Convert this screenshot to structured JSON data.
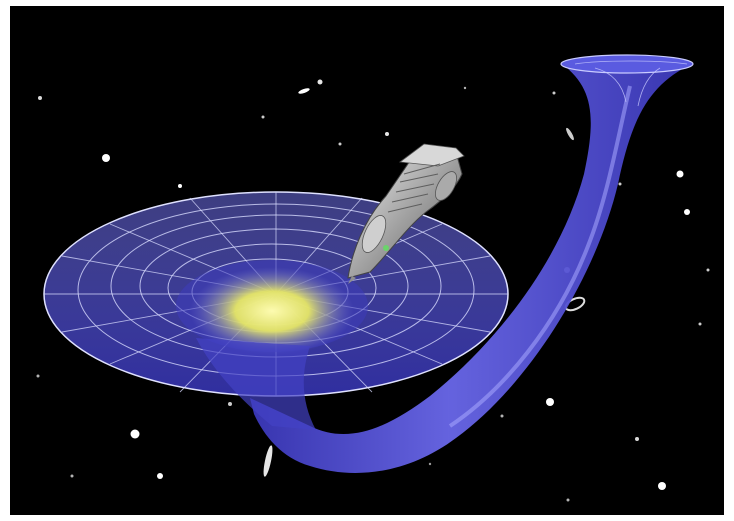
{
  "image": {
    "subject": "wormhole-illustration",
    "background_color": "#000000",
    "tunnel_color": "#4f4fd6",
    "grid_color": "#d9dcff",
    "core_glow_color": "#f2f57a",
    "ship_color": "#c8c8c8",
    "frame_color": "#ffffff"
  }
}
